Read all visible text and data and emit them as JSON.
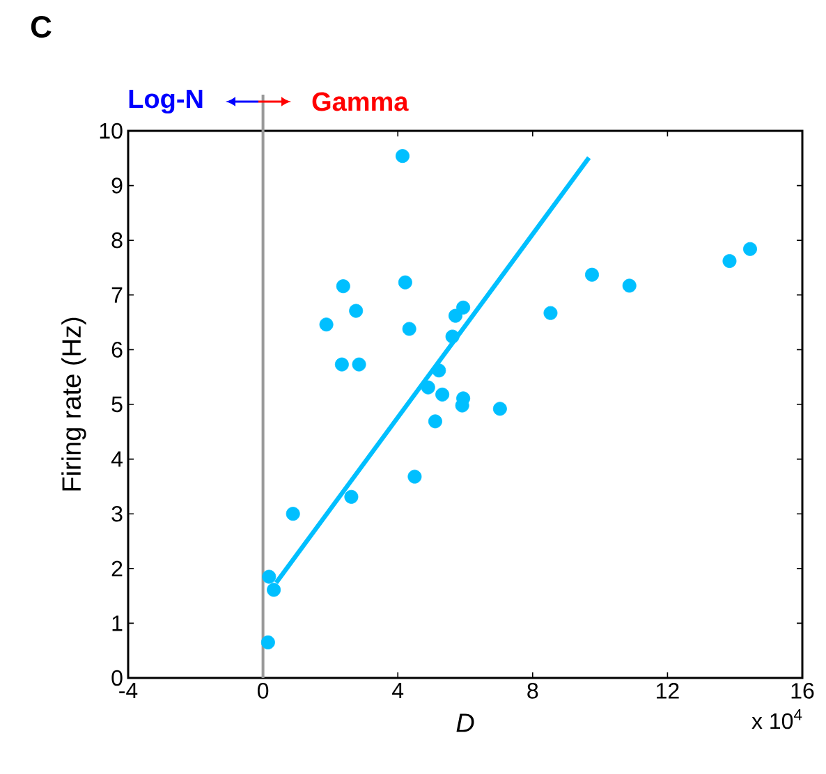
{
  "chart_data": {
    "type": "scatter",
    "title": "C",
    "xlabel": "D",
    "ylabel": "Firing rate (Hz)",
    "xlim": [
      -4,
      16
    ],
    "xticks": [
      -4,
      0,
      4,
      8,
      12,
      16
    ],
    "ylim": [
      0,
      10
    ],
    "yticks": [
      0,
      1,
      2,
      3,
      4,
      5,
      6,
      7,
      8,
      9,
      10
    ],
    "marker": "circle",
    "ref_lines": [
      {
        "axis": "x",
        "value": 0,
        "color": "#999999"
      }
    ],
    "annotations": [
      "Log-N",
      "Gamma",
      "x 10$^{4}$"
    ],
    "series": [
      {
        "color": "#00bfff",
        "x": [
          4.14,
          4.22,
          2.38,
          2.76,
          1.88,
          4.34,
          5.71,
          5.94,
          5.62,
          2.34,
          2.85,
          5.22,
          4.9,
          5.32,
          5.94,
          5.91,
          7.03,
          5.11,
          2.62,
          4.5,
          0.89,
          0.18,
          0.32,
          0.15,
          8.53,
          9.76,
          10.87,
          13.84,
          14.45
        ],
        "values": [
          9.54,
          7.23,
          7.16,
          6.71,
          6.46,
          6.38,
          6.62,
          6.77,
          6.24,
          5.73,
          5.73,
          5.62,
          5.31,
          5.18,
          5.11,
          4.98,
          4.92,
          4.69,
          3.31,
          3.68,
          3.0,
          1.85,
          1.61,
          0.65,
          6.67,
          7.37,
          7.17,
          7.62,
          7.84
        ]
      },
      {
        "type": "line",
        "color": "#00bfff",
        "marker": "none",
        "x": [
          0.39,
          9.67
        ],
        "values": [
          1.74,
          9.51
        ]
      }
    ]
  }
}
